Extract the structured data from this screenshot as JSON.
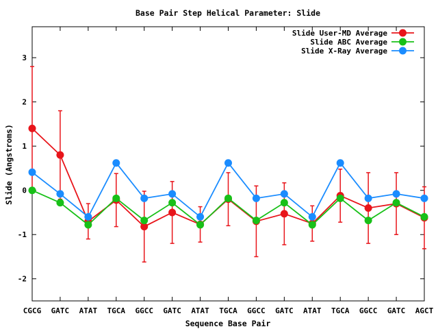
{
  "chart_data": {
    "type": "line",
    "title": "Base Pair Step Helical Parameter: Slide",
    "xlabel": "Sequence Base Pair",
    "ylabel": "Slide (Angstroms)",
    "ylim": [
      -2.5,
      3.7
    ],
    "yticks": [
      -2,
      -1,
      0,
      1,
      2,
      3
    ],
    "grid": false,
    "legend_position": "top-right",
    "categories": [
      "CGCG",
      "GATC",
      "ATAT",
      "TGCA",
      "GGCC",
      "GATC",
      "ATAT",
      "TGCA",
      "GGCC",
      "GATC",
      "ATAT",
      "TGCA",
      "GGCC",
      "GATC",
      "AGCT"
    ],
    "series": [
      {
        "name": "Slide User-MD Average",
        "color": "#e8141a",
        "values": [
          1.4,
          0.8,
          -0.7,
          -0.22,
          -0.82,
          -0.5,
          -0.77,
          -0.2,
          -0.7,
          -0.53,
          -0.75,
          -0.12,
          -0.4,
          -0.3,
          -0.62
        ],
        "error": [
          1.4,
          1.0,
          0.4,
          0.6,
          0.8,
          0.7,
          0.4,
          0.6,
          0.8,
          0.7,
          0.4,
          0.6,
          0.8,
          0.7,
          0.7
        ]
      },
      {
        "name": "Slide ABC Average",
        "color": "#18c018",
        "values": [
          0.0,
          -0.28,
          -0.78,
          -0.18,
          -0.68,
          -0.28,
          -0.78,
          -0.18,
          -0.68,
          -0.28,
          -0.78,
          -0.18,
          -0.68,
          -0.28,
          -0.6
        ]
      },
      {
        "name": "Slide X-Ray Average",
        "color": "#1a8cff",
        "values": [
          0.41,
          -0.08,
          -0.6,
          0.62,
          -0.18,
          -0.08,
          -0.6,
          0.62,
          -0.18,
          -0.08,
          -0.6,
          0.62,
          -0.18,
          -0.08,
          -0.18
        ]
      }
    ]
  }
}
